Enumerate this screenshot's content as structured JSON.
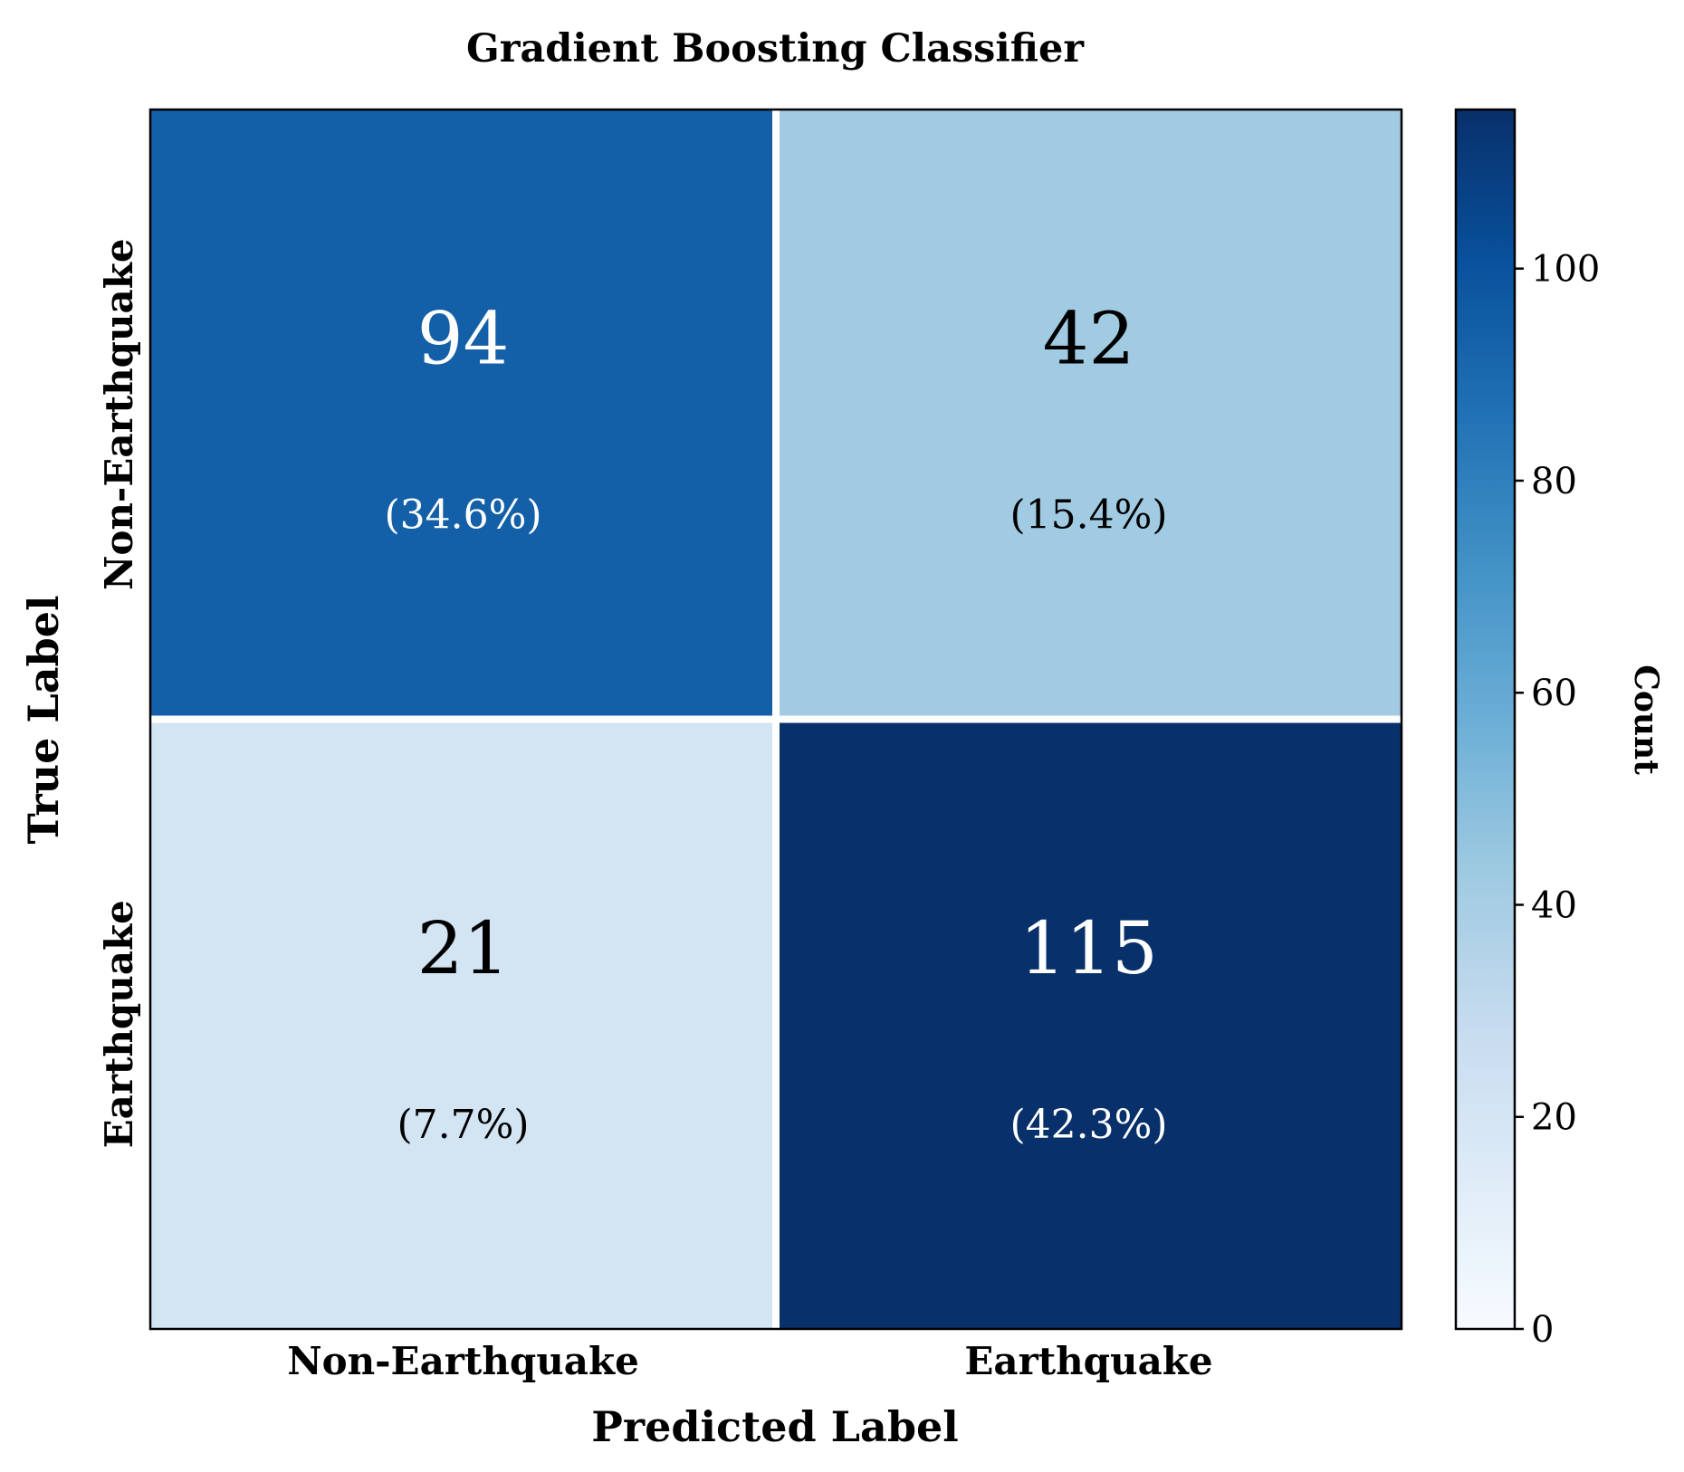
{
  "chart_data": {
    "type": "heatmap",
    "title": "Gradient Boosting Classifier",
    "xlabel": "Predicted Label",
    "ylabel": "True Label",
    "x_categories": [
      "Non-Earthquake",
      "Earthquake"
    ],
    "y_categories": [
      "Non-Earthquake",
      "Earthquake"
    ],
    "values": [
      [
        94,
        42
      ],
      [
        21,
        115
      ]
    ],
    "percent_labels": [
      [
        "(34.6%)",
        "(15.4%)"
      ],
      [
        "(7.7%)",
        "(42.3%)"
      ]
    ],
    "colorbar": {
      "label": "Count",
      "min": 0,
      "max": 115,
      "ticks": [
        0,
        20,
        40,
        60,
        80,
        100
      ],
      "colormap": "Blues",
      "colors": [
        "#f7fbff",
        "#deebf7",
        "#c6dbef",
        "#9ecae1",
        "#6baed6",
        "#4292c6",
        "#2171b5",
        "#08519c",
        "#08306b"
      ]
    }
  }
}
